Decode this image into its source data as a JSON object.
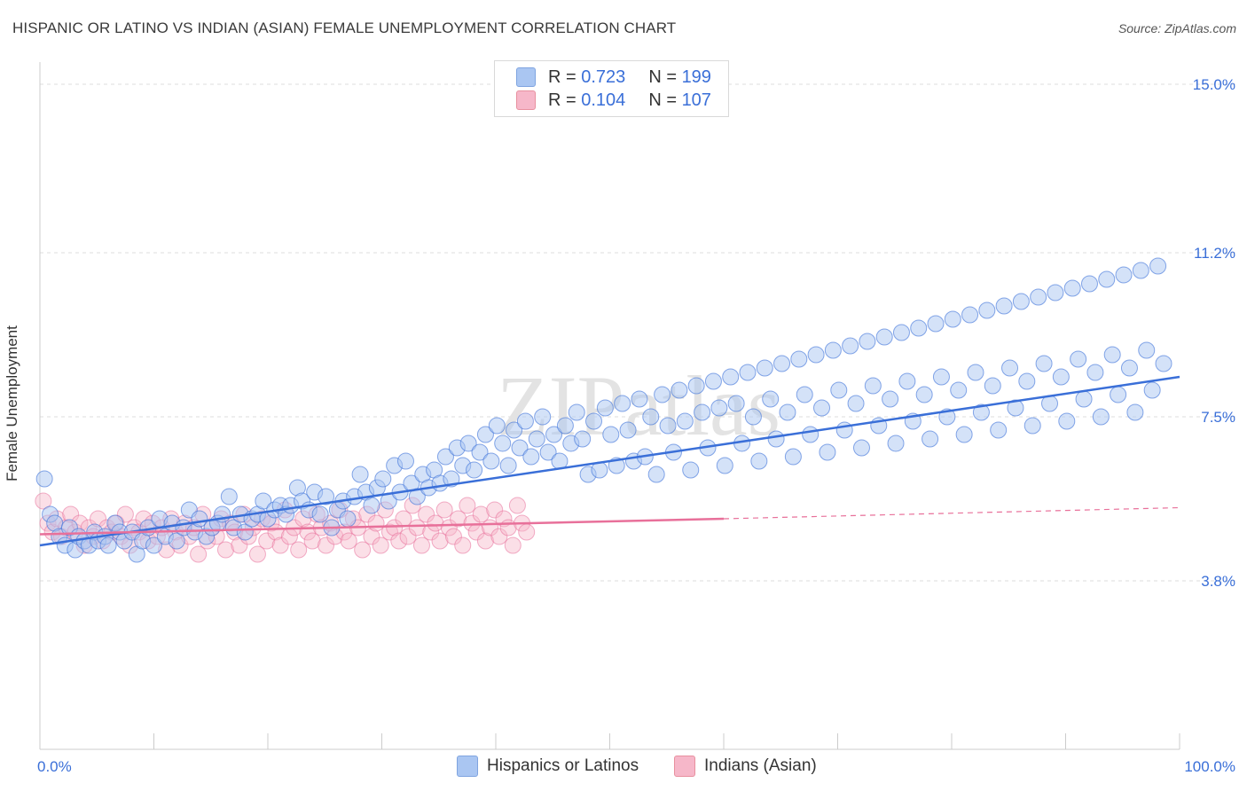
{
  "title": "HISPANIC OR LATINO VS INDIAN (ASIAN) FEMALE UNEMPLOYMENT CORRELATION CHART",
  "source": "Source: ZipAtlas.com",
  "legend": {
    "rows": [
      {
        "r_label": "R =",
        "r_value": "0.723",
        "n_label": "N =",
        "n_value": "199",
        "color": "#aac6f2"
      },
      {
        "r_label": "R =",
        "r_value": "0.104",
        "n_label": "N =",
        "n_value": "107",
        "color": "#f6b7c9"
      }
    ]
  },
  "bottom_legend": {
    "items": [
      {
        "label": "Hispanics or Latinos",
        "color": "#aac6f2"
      },
      {
        "label": "Indians (Asian)",
        "color": "#f6b7c9"
      }
    ]
  },
  "chart_data": {
    "type": "scatter",
    "xlabel": "",
    "ylabel": "Female Unemployment",
    "xlim": [
      0,
      100
    ],
    "ylim": [
      0,
      15.5
    ],
    "x_tick_labels": [
      "0.0%",
      "100.0%"
    ],
    "y_ticks": [
      3.8,
      7.5,
      11.2,
      15.0
    ],
    "y_tick_labels": [
      "3.8%",
      "7.5%",
      "11.2%",
      "15.0%"
    ],
    "grid": true,
    "watermark": "ZIPatlas",
    "colors": {
      "blue": "#3a6fd8",
      "blue_fill": "#aac6f2",
      "pink": "#e8709a",
      "pink_fill": "#f6b7c9",
      "axis_text": "#3a6fd8"
    },
    "series": [
      {
        "name": "Hispanics or Latinos",
        "trend": {
          "x": [
            0,
            100
          ],
          "y": [
            4.6,
            8.4
          ]
        },
        "points": [
          [
            0.4,
            6.1
          ],
          [
            0.9,
            5.3
          ],
          [
            1.3,
            5.1
          ],
          [
            1.7,
            4.8
          ],
          [
            2.2,
            4.6
          ],
          [
            2.6,
            5.0
          ],
          [
            3.1,
            4.5
          ],
          [
            3.4,
            4.8
          ],
          [
            3.9,
            4.7
          ],
          [
            4.3,
            4.6
          ],
          [
            4.8,
            4.9
          ],
          [
            5.1,
            4.7
          ],
          [
            5.7,
            4.8
          ],
          [
            6.0,
            4.6
          ],
          [
            6.6,
            5.1
          ],
          [
            7.0,
            4.9
          ],
          [
            7.4,
            4.7
          ],
          [
            8.1,
            4.9
          ],
          [
            8.5,
            4.4
          ],
          [
            9.0,
            4.7
          ],
          [
            9.5,
            5.0
          ],
          [
            10.0,
            4.6
          ],
          [
            10.5,
            5.2
          ],
          [
            11.0,
            4.8
          ],
          [
            11.6,
            5.1
          ],
          [
            12.0,
            4.7
          ],
          [
            12.6,
            5.0
          ],
          [
            13.1,
            5.4
          ],
          [
            13.6,
            4.9
          ],
          [
            14.0,
            5.2
          ],
          [
            14.6,
            4.8
          ],
          [
            15.1,
            5.0
          ],
          [
            15.6,
            5.1
          ],
          [
            16.0,
            5.3
          ],
          [
            16.6,
            5.7
          ],
          [
            17.0,
            5.0
          ],
          [
            17.6,
            5.3
          ],
          [
            18.0,
            4.9
          ],
          [
            18.6,
            5.2
          ],
          [
            19.1,
            5.3
          ],
          [
            19.6,
            5.6
          ],
          [
            20.0,
            5.2
          ],
          [
            20.6,
            5.4
          ],
          [
            21.1,
            5.5
          ],
          [
            21.6,
            5.3
          ],
          [
            22.0,
            5.5
          ],
          [
            22.6,
            5.9
          ],
          [
            23.0,
            5.6
          ],
          [
            23.6,
            5.4
          ],
          [
            24.1,
            5.8
          ],
          [
            24.6,
            5.3
          ],
          [
            25.1,
            5.7
          ],
          [
            25.6,
            5.0
          ],
          [
            26.1,
            5.4
          ],
          [
            26.6,
            5.6
          ],
          [
            27.0,
            5.2
          ],
          [
            27.6,
            5.7
          ],
          [
            28.1,
            6.2
          ],
          [
            28.6,
            5.8
          ],
          [
            29.1,
            5.5
          ],
          [
            29.6,
            5.9
          ],
          [
            30.1,
            6.1
          ],
          [
            30.6,
            5.6
          ],
          [
            31.1,
            6.4
          ],
          [
            31.6,
            5.8
          ],
          [
            32.1,
            6.5
          ],
          [
            32.6,
            6.0
          ],
          [
            33.1,
            5.7
          ],
          [
            33.6,
            6.2
          ],
          [
            34.1,
            5.9
          ],
          [
            34.6,
            6.3
          ],
          [
            35.1,
            6.0
          ],
          [
            35.6,
            6.6
          ],
          [
            36.1,
            6.1
          ],
          [
            36.6,
            6.8
          ],
          [
            37.1,
            6.4
          ],
          [
            37.6,
            6.9
          ],
          [
            38.1,
            6.3
          ],
          [
            38.6,
            6.7
          ],
          [
            39.1,
            7.1
          ],
          [
            39.6,
            6.5
          ],
          [
            40.1,
            7.3
          ],
          [
            40.6,
            6.9
          ],
          [
            41.1,
            6.4
          ],
          [
            41.6,
            7.2
          ],
          [
            42.1,
            6.8
          ],
          [
            42.6,
            7.4
          ],
          [
            43.1,
            6.6
          ],
          [
            43.6,
            7.0
          ],
          [
            44.1,
            7.5
          ],
          [
            44.6,
            6.7
          ],
          [
            45.1,
            7.1
          ],
          [
            45.6,
            6.5
          ],
          [
            46.1,
            7.3
          ],
          [
            46.6,
            6.9
          ],
          [
            47.1,
            7.6
          ],
          [
            47.6,
            7.0
          ],
          [
            48.1,
            6.2
          ],
          [
            48.6,
            7.4
          ],
          [
            49.1,
            6.3
          ],
          [
            49.6,
            7.7
          ],
          [
            50.1,
            7.1
          ],
          [
            50.6,
            6.4
          ],
          [
            51.1,
            7.8
          ],
          [
            51.6,
            7.2
          ],
          [
            52.1,
            6.5
          ],
          [
            52.6,
            7.9
          ],
          [
            53.1,
            6.6
          ],
          [
            53.6,
            7.5
          ],
          [
            54.1,
            6.2
          ],
          [
            54.6,
            8.0
          ],
          [
            55.1,
            7.3
          ],
          [
            55.6,
            6.7
          ],
          [
            56.1,
            8.1
          ],
          [
            56.6,
            7.4
          ],
          [
            57.1,
            6.3
          ],
          [
            57.6,
            8.2
          ],
          [
            58.1,
            7.6
          ],
          [
            58.6,
            6.8
          ],
          [
            59.1,
            8.3
          ],
          [
            59.6,
            7.7
          ],
          [
            60.1,
            6.4
          ],
          [
            60.6,
            8.4
          ],
          [
            61.1,
            7.8
          ],
          [
            61.6,
            6.9
          ],
          [
            62.1,
            8.5
          ],
          [
            62.6,
            7.5
          ],
          [
            63.1,
            6.5
          ],
          [
            63.6,
            8.6
          ],
          [
            64.1,
            7.9
          ],
          [
            64.6,
            7.0
          ],
          [
            65.1,
            8.7
          ],
          [
            65.6,
            7.6
          ],
          [
            66.1,
            6.6
          ],
          [
            66.6,
            8.8
          ],
          [
            67.1,
            8.0
          ],
          [
            67.6,
            7.1
          ],
          [
            68.1,
            8.9
          ],
          [
            68.6,
            7.7
          ],
          [
            69.1,
            6.7
          ],
          [
            69.6,
            9.0
          ],
          [
            70.1,
            8.1
          ],
          [
            70.6,
            7.2
          ],
          [
            71.1,
            9.1
          ],
          [
            71.6,
            7.8
          ],
          [
            72.1,
            6.8
          ],
          [
            72.6,
            9.2
          ],
          [
            73.1,
            8.2
          ],
          [
            73.6,
            7.3
          ],
          [
            74.1,
            9.3
          ],
          [
            74.6,
            7.9
          ],
          [
            75.1,
            6.9
          ],
          [
            75.6,
            9.4
          ],
          [
            76.1,
            8.3
          ],
          [
            76.6,
            7.4
          ],
          [
            77.1,
            9.5
          ],
          [
            77.6,
            8.0
          ],
          [
            78.1,
            7.0
          ],
          [
            78.6,
            9.6
          ],
          [
            79.1,
            8.4
          ],
          [
            79.6,
            7.5
          ],
          [
            80.1,
            9.7
          ],
          [
            80.6,
            8.1
          ],
          [
            81.1,
            7.1
          ],
          [
            81.6,
            9.8
          ],
          [
            82.1,
            8.5
          ],
          [
            82.6,
            7.6
          ],
          [
            83.1,
            9.9
          ],
          [
            83.6,
            8.2
          ],
          [
            84.1,
            7.2
          ],
          [
            84.6,
            10.0
          ],
          [
            85.1,
            8.6
          ],
          [
            85.6,
            7.7
          ],
          [
            86.1,
            10.1
          ],
          [
            86.6,
            8.3
          ],
          [
            87.1,
            7.3
          ],
          [
            87.6,
            10.2
          ],
          [
            88.1,
            8.7
          ],
          [
            88.6,
            7.8
          ],
          [
            89.1,
            10.3
          ],
          [
            89.6,
            8.4
          ],
          [
            90.1,
            7.4
          ],
          [
            90.6,
            10.4
          ],
          [
            91.1,
            8.8
          ],
          [
            91.6,
            7.9
          ],
          [
            92.1,
            10.5
          ],
          [
            92.6,
            8.5
          ],
          [
            93.1,
            7.5
          ],
          [
            93.6,
            10.6
          ],
          [
            94.1,
            8.9
          ],
          [
            94.6,
            8.0
          ],
          [
            95.1,
            10.7
          ],
          [
            95.6,
            8.6
          ],
          [
            96.1,
            7.6
          ],
          [
            96.6,
            10.8
          ],
          [
            97.1,
            9.0
          ],
          [
            97.6,
            8.1
          ],
          [
            98.1,
            10.9
          ],
          [
            98.6,
            8.7
          ]
        ]
      },
      {
        "name": "Indians (Asian)",
        "trend": {
          "x": [
            0,
            60
          ],
          "y": [
            4.85,
            5.2
          ]
        },
        "trend_dashed": {
          "x": [
            60,
            100
          ],
          "y": [
            5.2,
            5.45
          ]
        },
        "points": [
          [
            0.3,
            5.6
          ],
          [
            0.7,
            5.1
          ],
          [
            1.1,
            4.9
          ],
          [
            1.5,
            5.2
          ],
          [
            1.9,
            4.8
          ],
          [
            2.3,
            5.0
          ],
          [
            2.7,
            5.3
          ],
          [
            3.1,
            4.9
          ],
          [
            3.5,
            5.1
          ],
          [
            3.9,
            4.6
          ],
          [
            4.3,
            5.0
          ],
          [
            4.7,
            4.8
          ],
          [
            5.1,
            5.2
          ],
          [
            5.5,
            4.7
          ],
          [
            5.9,
            5.0
          ],
          [
            6.3,
            4.9
          ],
          [
            6.7,
            5.1
          ],
          [
            7.1,
            4.8
          ],
          [
            7.5,
            5.3
          ],
          [
            7.9,
            4.6
          ],
          [
            8.3,
            5.0
          ],
          [
            8.7,
            4.9
          ],
          [
            9.1,
            5.2
          ],
          [
            9.5,
            4.7
          ],
          [
            9.9,
            5.1
          ],
          [
            10.3,
            4.8
          ],
          [
            10.7,
            5.0
          ],
          [
            11.1,
            4.5
          ],
          [
            11.5,
            5.2
          ],
          [
            11.9,
            4.9
          ],
          [
            12.3,
            4.6
          ],
          [
            12.7,
            5.1
          ],
          [
            13.1,
            4.8
          ],
          [
            13.5,
            5.0
          ],
          [
            13.9,
            4.4
          ],
          [
            14.3,
            5.3
          ],
          [
            14.7,
            4.7
          ],
          [
            15.1,
            5.0
          ],
          [
            15.5,
            4.8
          ],
          [
            15.9,
            5.2
          ],
          [
            16.3,
            4.5
          ],
          [
            16.7,
            5.1
          ],
          [
            17.1,
            4.9
          ],
          [
            17.5,
            4.6
          ],
          [
            17.9,
            5.3
          ],
          [
            18.3,
            4.8
          ],
          [
            18.7,
            5.0
          ],
          [
            19.1,
            4.4
          ],
          [
            19.5,
            5.2
          ],
          [
            19.9,
            4.7
          ],
          [
            20.3,
            5.1
          ],
          [
            20.7,
            4.9
          ],
          [
            21.1,
            4.6
          ],
          [
            21.5,
            5.4
          ],
          [
            21.9,
            4.8
          ],
          [
            22.3,
            5.0
          ],
          [
            22.7,
            4.5
          ],
          [
            23.1,
            5.2
          ],
          [
            23.5,
            4.9
          ],
          [
            23.9,
            4.7
          ],
          [
            24.3,
            5.3
          ],
          [
            24.7,
            5.0
          ],
          [
            25.1,
            4.6
          ],
          [
            25.5,
            5.1
          ],
          [
            25.9,
            4.8
          ],
          [
            26.3,
            5.4
          ],
          [
            26.7,
            4.9
          ],
          [
            27.1,
            4.7
          ],
          [
            27.5,
            5.2
          ],
          [
            27.9,
            5.0
          ],
          [
            28.3,
            4.5
          ],
          [
            28.7,
            5.3
          ],
          [
            29.1,
            4.8
          ],
          [
            29.5,
            5.1
          ],
          [
            29.9,
            4.6
          ],
          [
            30.3,
            5.4
          ],
          [
            30.7,
            4.9
          ],
          [
            31.1,
            5.0
          ],
          [
            31.5,
            4.7
          ],
          [
            31.9,
            5.2
          ],
          [
            32.3,
            4.8
          ],
          [
            32.7,
            5.5
          ],
          [
            33.1,
            5.0
          ],
          [
            33.5,
            4.6
          ],
          [
            33.9,
            5.3
          ],
          [
            34.3,
            4.9
          ],
          [
            34.7,
            5.1
          ],
          [
            35.1,
            4.7
          ],
          [
            35.5,
            5.4
          ],
          [
            35.9,
            5.0
          ],
          [
            36.3,
            4.8
          ],
          [
            36.7,
            5.2
          ],
          [
            37.1,
            4.6
          ],
          [
            37.5,
            5.5
          ],
          [
            37.9,
            5.1
          ],
          [
            38.3,
            4.9
          ],
          [
            38.7,
            5.3
          ],
          [
            39.1,
            4.7
          ],
          [
            39.5,
            5.0
          ],
          [
            39.9,
            5.4
          ],
          [
            40.3,
            4.8
          ],
          [
            40.7,
            5.2
          ],
          [
            41.1,
            5.0
          ],
          [
            41.5,
            4.6
          ],
          [
            41.9,
            5.5
          ],
          [
            42.3,
            5.1
          ],
          [
            42.7,
            4.9
          ]
        ]
      }
    ]
  }
}
